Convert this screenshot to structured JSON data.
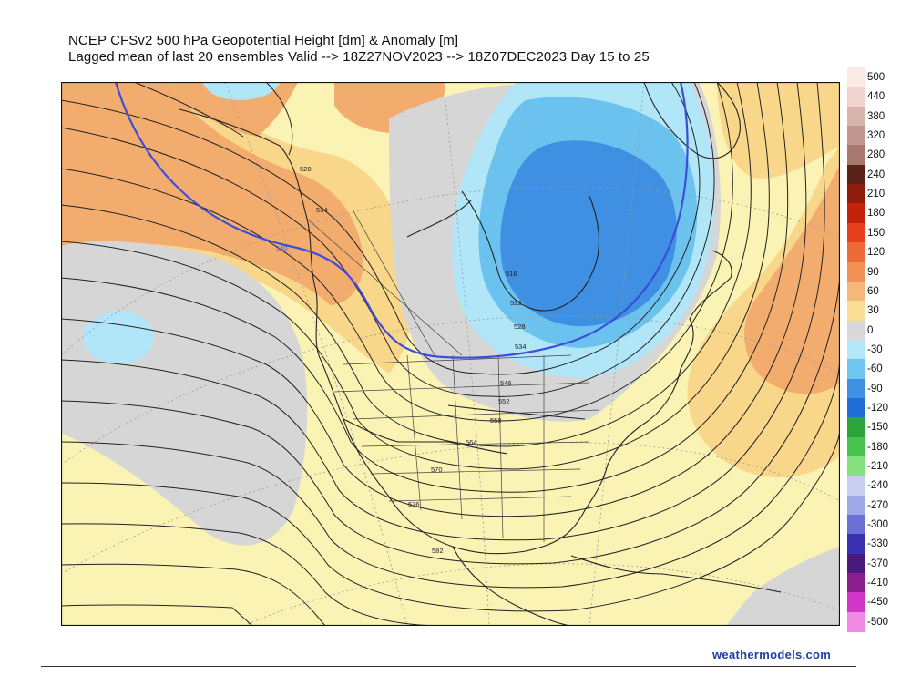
{
  "title": {
    "line1": "NCEP CFSv2 500 hPa Geopotential Height [dm] & Anomaly [m]",
    "line2": "Lagged mean of last 20 ensembles Valid --> 18Z27NOV2023 --> 18Z07DEC2023  Day 15 to 25"
  },
  "credit": "weathermodels.com",
  "colors": {
    "warm_light": "#faf3b4",
    "warm_mid": "#f8d68a",
    "warm_strong": "#f2ad6e",
    "neutral": "#d6d6d6",
    "cold_light": "#b0e6f7",
    "cold_mid": "#6cc2ee",
    "cold_strong": "#3f8fe2",
    "blue_contour": "#3c4dd8"
  },
  "height_contour_labels": [
    "528",
    "534",
    "540",
    "516",
    "522",
    "528",
    "534",
    "546",
    "552",
    "558",
    "564",
    "570",
    "576",
    "582"
  ],
  "legend": [
    {
      "label": "500",
      "color": "#fbe9e4"
    },
    {
      "label": "440",
      "color": "#efd3cc"
    },
    {
      "label": "380",
      "color": "#d9b4ad"
    },
    {
      "label": "320",
      "color": "#c29690"
    },
    {
      "label": "280",
      "color": "#a8776f"
    },
    {
      "label": "240",
      "color": "#5a2218"
    },
    {
      "label": "210",
      "color": "#8f1b0d"
    },
    {
      "label": "180",
      "color": "#c4220c"
    },
    {
      "label": "150",
      "color": "#e6401c"
    },
    {
      "label": "120",
      "color": "#ee6a36"
    },
    {
      "label": "90",
      "color": "#f29256"
    },
    {
      "label": "60",
      "color": "#f6b77a"
    },
    {
      "label": "30",
      "color": "#f9de94"
    },
    {
      "label": "0",
      "color": "#d8d8d8"
    },
    {
      "label": "-30",
      "color": "#b4e7f7"
    },
    {
      "label": "-60",
      "color": "#6fc5ef"
    },
    {
      "label": "-90",
      "color": "#3f91e3"
    },
    {
      "label": "-120",
      "color": "#1f6ed6"
    },
    {
      "label": "-150",
      "color": "#2aa53a"
    },
    {
      "label": "-180",
      "color": "#48c24e"
    },
    {
      "label": "-210",
      "color": "#86e07f"
    },
    {
      "label": "-240",
      "color": "#c6cff1"
    },
    {
      "label": "-270",
      "color": "#9ea9ea"
    },
    {
      "label": "-300",
      "color": "#6b6fd6"
    },
    {
      "label": "-330",
      "color": "#3a32b0"
    },
    {
      "label": "-370",
      "color": "#4a1a7c"
    },
    {
      "label": "-410",
      "color": "#8a1e8f"
    },
    {
      "label": "-450",
      "color": "#d236c8"
    },
    {
      "label": "-500",
      "color": "#f08ae6"
    }
  ]
}
